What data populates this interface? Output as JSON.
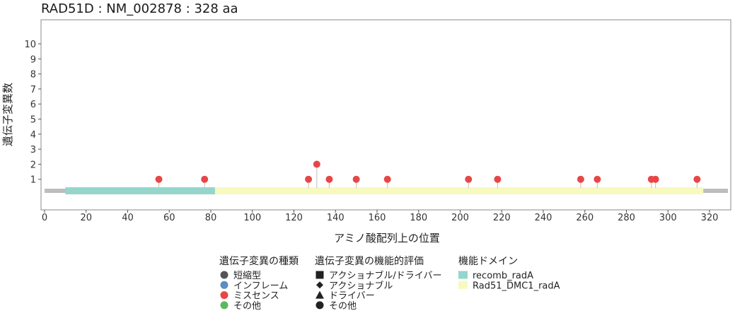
{
  "chart_data": {
    "type": "lollipop",
    "title": "RAD51D : NM_002878 : 328 aa",
    "xlabel": "アミノ酸配列上の位置",
    "ylabel": "遺伝子変異数",
    "xlim": [
      0,
      328
    ],
    "ylim": [
      0,
      11
    ],
    "x_ticks": [
      0,
      20,
      40,
      60,
      80,
      100,
      120,
      140,
      160,
      180,
      200,
      220,
      240,
      260,
      280,
      300,
      320
    ],
    "y_ticks": [
      1,
      2,
      3,
      4,
      5,
      6,
      7,
      8,
      9,
      10
    ],
    "protein_length": 328,
    "domains": [
      {
        "name": "recomb_radA",
        "start": 10,
        "end": 82,
        "color": "#95d5cc"
      },
      {
        "name": "Rad51_DMC1_radA",
        "start": 82,
        "end": 317,
        "color": "#f7f9be"
      }
    ],
    "mutations": [
      {
        "position": 55,
        "count": 1,
        "type": "ミスセンス"
      },
      {
        "position": 77,
        "count": 1,
        "type": "ミスセンス"
      },
      {
        "position": 127,
        "count": 1,
        "type": "ミスセンス"
      },
      {
        "position": 131,
        "count": 2,
        "type": "ミスセンス"
      },
      {
        "position": 137,
        "count": 1,
        "type": "ミスセンス"
      },
      {
        "position": 150,
        "count": 1,
        "type": "ミスセンス"
      },
      {
        "position": 165,
        "count": 1,
        "type": "ミスセンス"
      },
      {
        "position": 204,
        "count": 1,
        "type": "ミスセンス"
      },
      {
        "position": 218,
        "count": 1,
        "type": "ミスセンス"
      },
      {
        "position": 258,
        "count": 1,
        "type": "ミスセンス"
      },
      {
        "position": 266,
        "count": 1,
        "type": "ミスセンス"
      },
      {
        "position": 292,
        "count": 1,
        "type": "ミスセンス"
      },
      {
        "position": 294,
        "count": 1,
        "type": "ミスセンス"
      },
      {
        "position": 314,
        "count": 1,
        "type": "ミスセンス"
      }
    ],
    "legend": {
      "placement": "bottom",
      "groups": [
        {
          "title": "遺伝子変異の種類",
          "items": [
            {
              "label": "短縮型",
              "shape": "circle",
              "color": "#555555"
            },
            {
              "label": "インフレーム",
              "shape": "circle",
              "color": "#5b8ec2"
            },
            {
              "label": "ミスセンス",
              "shape": "circle",
              "color": "#e84646"
            },
            {
              "label": "その他",
              "shape": "circle",
              "color": "#5cb85c"
            }
          ]
        },
        {
          "title": "遺伝子変異の機能的評価",
          "items": [
            {
              "label": "アクショナブル/ドライバー",
              "shape": "square",
              "color": "#222222"
            },
            {
              "label": "アクショナブル",
              "shape": "diamond",
              "color": "#222222"
            },
            {
              "label": "ドライバー",
              "shape": "triangle",
              "color": "#222222"
            },
            {
              "label": "その他",
              "shape": "circle",
              "color": "#222222"
            }
          ]
        },
        {
          "title": "機能ドメイン",
          "items": [
            {
              "label": "recomb_radA",
              "shape": "rect",
              "color": "#95d5cc"
            },
            {
              "label": "Rad51_DMC1_radA",
              "shape": "rect",
              "color": "#f7f9be"
            }
          ]
        }
      ]
    },
    "colors": {
      "backbone": "#bdbdbd",
      "stem": "#c9c9c9",
      "missense": "#e84646",
      "plot_border": "#888888"
    }
  }
}
